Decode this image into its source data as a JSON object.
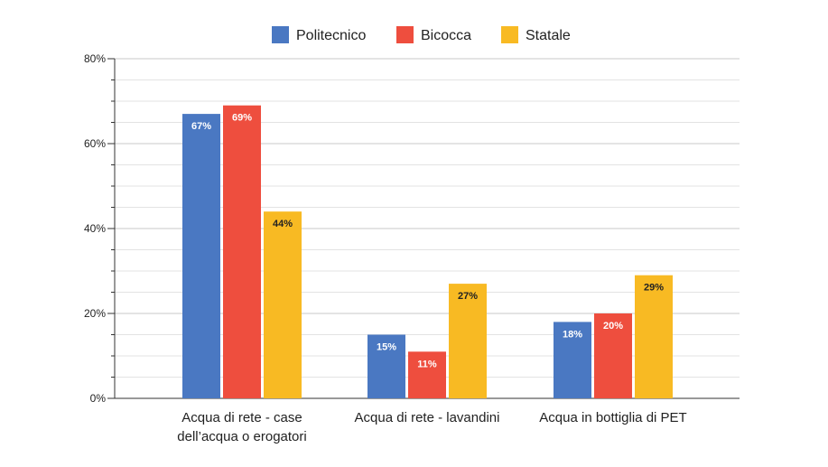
{
  "chart_data": {
    "type": "bar",
    "title": "",
    "xlabel": "",
    "ylabel": "",
    "ylim": [
      0,
      80
    ],
    "y_ticks": [
      0,
      20,
      40,
      60,
      80
    ],
    "y_tick_labels": [
      "0%",
      "20%",
      "40%",
      "60%",
      "80%"
    ],
    "grid": true,
    "legend": "top-center",
    "categories": [
      [
        "Acqua di rete - case",
        "dell’acqua o erogatori"
      ],
      [
        "Acqua di rete - lavandini"
      ],
      [
        "Acqua in bottiglia di PET"
      ]
    ],
    "series": [
      {
        "name": "Politecnico",
        "color": "#4A78C2",
        "values": [
          67,
          15,
          18
        ],
        "labels": [
          "67%",
          "15%",
          "18%"
        ],
        "label_color": "#ffffff"
      },
      {
        "name": "Bicocca",
        "color": "#EE4E3E",
        "values": [
          69,
          11,
          20
        ],
        "labels": [
          "69%",
          "11%",
          "20%"
        ],
        "label_color": "#ffffff"
      },
      {
        "name": "Statale",
        "color": "#F8BA23",
        "values": [
          44,
          27,
          29
        ],
        "labels": [
          "44%",
          "27%",
          "29%"
        ],
        "label_color": "#222222"
      }
    ]
  }
}
